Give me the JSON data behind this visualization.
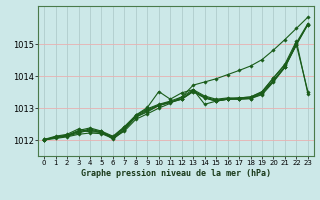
{
  "background_color": "#cce8e8",
  "grid_color_v": "#b0cccc",
  "grid_color_h": "#e8b0b0",
  "line_color": "#1a5c1a",
  "title": "Graphe pression niveau de la mer (hPa)",
  "xlim": [
    -0.5,
    23.5
  ],
  "ylim": [
    1011.5,
    1016.2
  ],
  "yticks": [
    1012,
    1013,
    1014,
    1015
  ],
  "xticks": [
    0,
    1,
    2,
    3,
    4,
    5,
    6,
    7,
    8,
    9,
    10,
    11,
    12,
    13,
    14,
    15,
    16,
    17,
    18,
    19,
    20,
    21,
    22,
    23
  ],
  "series": [
    [
      1012.0,
      1012.1,
      1012.15,
      1012.25,
      1012.35,
      1012.25,
      1012.1,
      1012.4,
      1012.75,
      1012.95,
      1013.1,
      1013.2,
      1013.3,
      1013.55,
      1013.35,
      1013.25,
      1013.3,
      1013.3,
      1013.32,
      1013.48,
      1013.88,
      1014.3,
      1015.05,
      1015.65
    ],
    [
      1012.0,
      1012.1,
      1012.15,
      1012.3,
      1012.38,
      1012.28,
      1012.12,
      1012.42,
      1012.78,
      1012.98,
      1013.12,
      1013.22,
      1013.35,
      1013.58,
      1013.38,
      1013.28,
      1013.32,
      1013.32,
      1013.35,
      1013.52,
      1013.95,
      1014.38,
      1015.1,
      1013.45
    ],
    [
      1012.0,
      1012.08,
      1012.12,
      1012.22,
      1012.32,
      1012.22,
      1012.08,
      1012.38,
      1012.72,
      1012.92,
      1013.08,
      1013.18,
      1013.28,
      1013.52,
      1013.32,
      1013.22,
      1013.28,
      1013.28,
      1013.3,
      1013.45,
      1013.85,
      1014.28,
      1015.0,
      1015.62
    ],
    [
      1012.02,
      1012.12,
      1012.18,
      1012.35,
      1012.25,
      1012.25,
      1012.08,
      1012.32,
      1012.78,
      1013.02,
      1013.52,
      1013.28,
      1013.48,
      1013.58,
      1013.12,
      1013.22,
      1013.28,
      1013.32,
      1013.35,
      1013.5,
      1013.95,
      1014.35,
      1014.98,
      1013.52
    ],
    [
      1012.02,
      1012.08,
      1012.12,
      1012.28,
      1012.28,
      1012.28,
      1012.02,
      1012.32,
      1012.72,
      1012.88,
      1013.08,
      1013.18,
      1013.28,
      1013.52,
      1013.32,
      1013.22,
      1013.28,
      1013.28,
      1013.3,
      1013.42,
      1013.82,
      1014.28,
      1014.98,
      1015.62
    ]
  ],
  "series_smooth": [
    1012.0,
    1012.05,
    1012.1,
    1012.18,
    1012.22,
    1012.2,
    1012.05,
    1012.28,
    1012.65,
    1012.82,
    1013.0,
    1013.15,
    1013.35,
    1013.72,
    1013.82,
    1013.92,
    1014.05,
    1014.18,
    1014.32,
    1014.52,
    1014.82,
    1015.15,
    1015.5,
    1015.85
  ]
}
